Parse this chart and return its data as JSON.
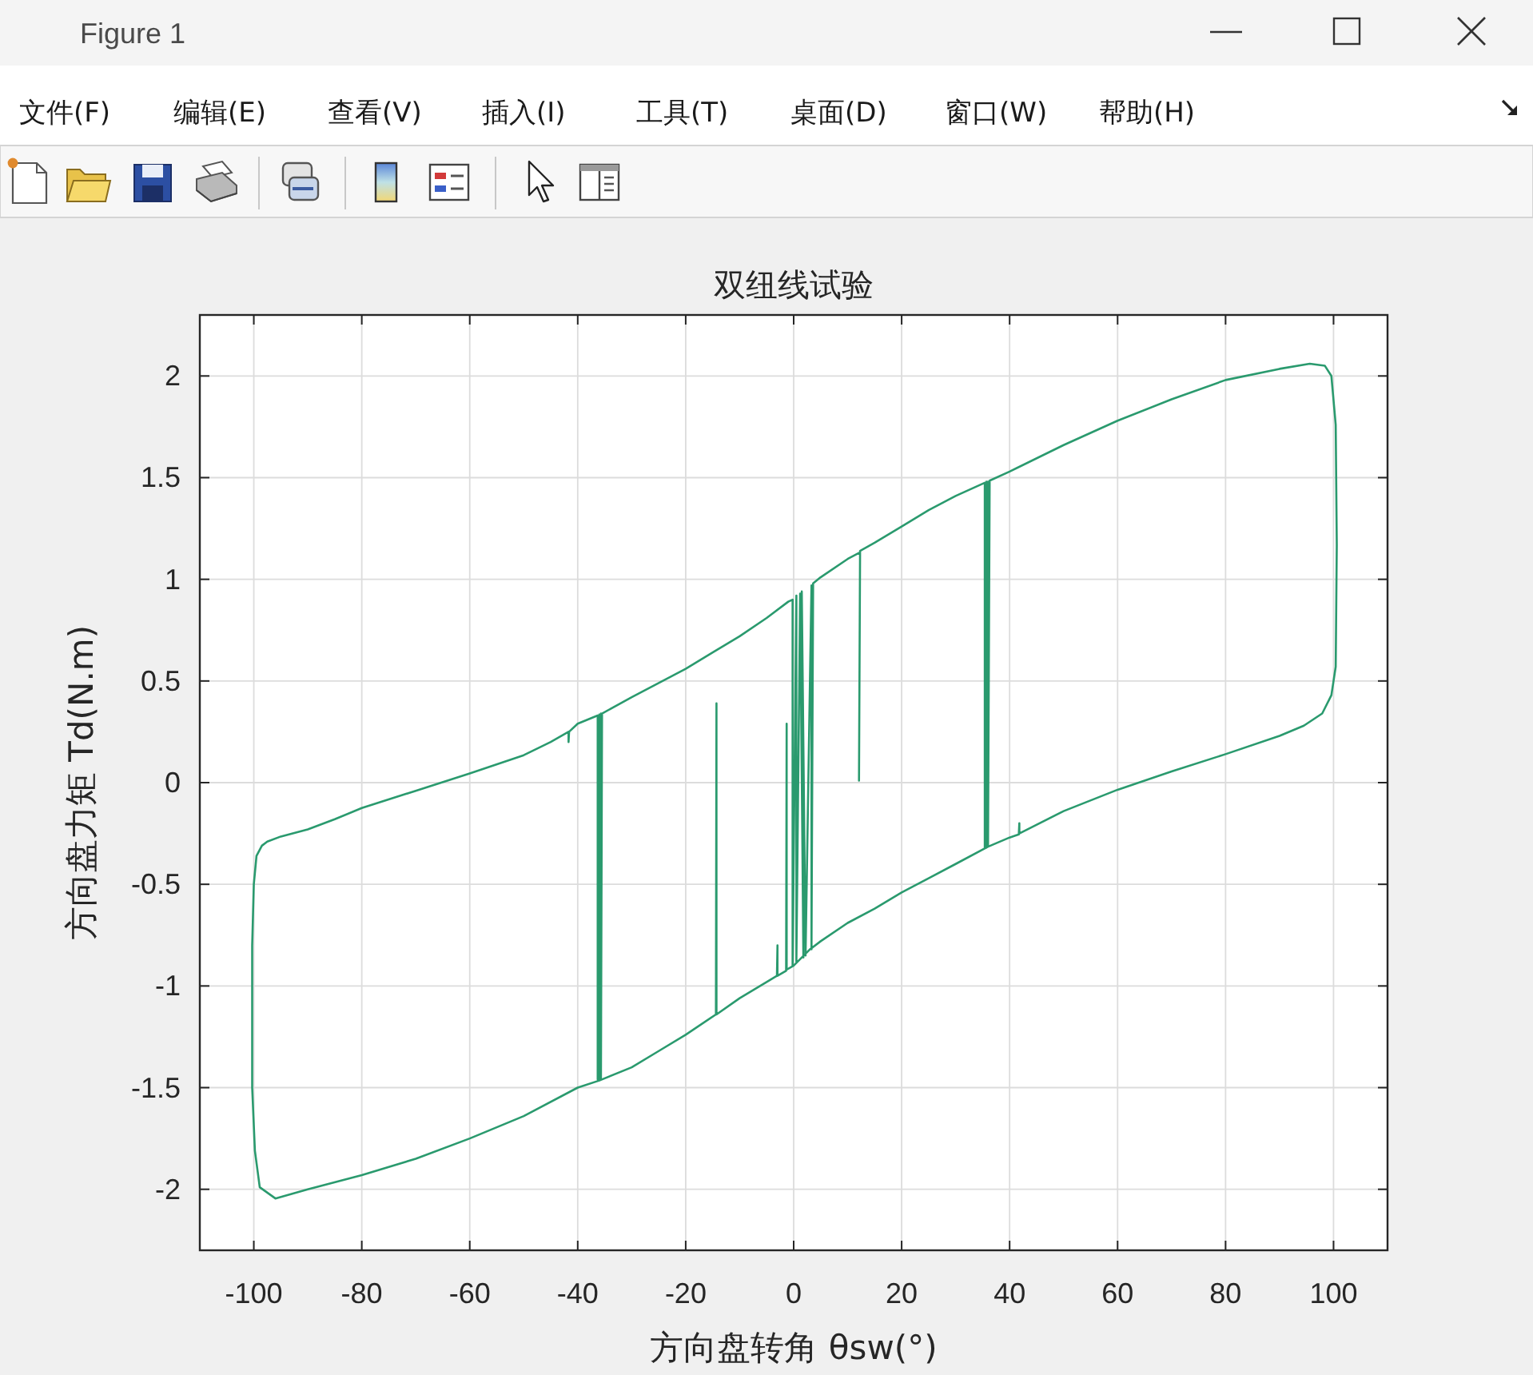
{
  "chart_data": {
    "type": "line",
    "title": "双纽线试验",
    "xlabel": "方向盘转角 θsw(°)",
    "ylabel": "方向盘力矩 Td(N.m)",
    "annotations": [
      "Figure 1",
      "文件(F)",
      "编辑(E)",
      "查看(V)",
      "插入(I)",
      "工具(T)",
      "桌面(D)",
      "窗口(W)",
      "帮助(H)"
    ],
    "series": [
      {
        "color": "#2a9a6e",
        "x": [
          12.1,
          12.3,
          15,
          20,
          25,
          30,
          35.4,
          35.4,
          35.7,
          35.7,
          36,
          36,
          36.3,
          40,
          50,
          60,
          70,
          80,
          90,
          95.6,
          98.4,
          99.6,
          100.4,
          100.6,
          100.4,
          99.6,
          97.9,
          94.5,
          90,
          80,
          70,
          60,
          50,
          41.8,
          41.8,
          41.7,
          40,
          36,
          30,
          25,
          20,
          15,
          10,
          5,
          3,
          0,
          -1.3,
          -1.3,
          -1.4,
          -3,
          -3,
          -3.1,
          -5,
          -10,
          -14.3,
          -14.3,
          -14.4,
          -20,
          -25,
          -30,
          -36,
          -40,
          -50,
          -60,
          -70,
          -80,
          -90,
          -96,
          -98.9,
          -99.8,
          -100.3,
          -100.3,
          -100,
          -99.5,
          -98.5,
          -97.5,
          -95,
          -90,
          -85,
          -80,
          -70,
          -60,
          -50,
          -45,
          -41.7,
          -41.7,
          -41.6,
          -40,
          -36.3,
          -36.3,
          -36,
          -36,
          -35.7,
          -35.7,
          -35.5,
          -30,
          -25,
          -20,
          -15,
          -10,
          -5,
          -1,
          -0.2,
          -0.2,
          0.5,
          0.5,
          1.2,
          1.8,
          1.5,
          2.2,
          3.3,
          3.3,
          3.6,
          5,
          10,
          12.1
        ],
        "values": [
          0.01,
          1.14,
          1.18,
          1.26,
          1.34,
          1.41,
          1.475,
          -0.32,
          1.48,
          -0.32,
          1.48,
          -0.31,
          1.485,
          1.53,
          1.66,
          1.78,
          1.885,
          1.98,
          2.035,
          2.06,
          2.05,
          2.0,
          1.76,
          1.17,
          0.57,
          0.43,
          0.34,
          0.28,
          0.23,
          0.14,
          0.055,
          -0.035,
          -0.14,
          -0.25,
          -0.2,
          -0.255,
          -0.27,
          -0.315,
          -0.4,
          -0.47,
          -0.54,
          -0.62,
          -0.69,
          -0.78,
          -0.82,
          -0.9,
          -0.92,
          0.29,
          -0.925,
          -0.95,
          -0.8,
          -0.95,
          -0.98,
          -1.06,
          -1.14,
          0.39,
          -1.14,
          -1.24,
          -1.32,
          -1.4,
          -1.465,
          -1.5,
          -1.64,
          -1.75,
          -1.85,
          -1.93,
          -2.0,
          -2.045,
          -1.99,
          -1.81,
          -1.5,
          -0.8,
          -0.5,
          -0.36,
          -0.31,
          -0.29,
          -0.265,
          -0.23,
          -0.18,
          -0.125,
          -0.04,
          0.045,
          0.135,
          0.2,
          0.25,
          0.2,
          0.25,
          0.29,
          0.33,
          -1.46,
          0.335,
          -1.465,
          0.34,
          -1.455,
          0.34,
          0.42,
          0.49,
          0.56,
          0.64,
          0.72,
          0.81,
          0.89,
          0.9,
          -0.9,
          0.92,
          -0.88,
          0.93,
          -0.86,
          0.94,
          -0.85,
          0.97,
          -0.82,
          0.98,
          1.01,
          1.1,
          1.13
        ]
      }
    ],
    "xlim": [
      -110,
      110
    ],
    "ylim": [
      -2.3,
      2.3
    ],
    "xticks": [
      -100,
      -80,
      -60,
      -40,
      -20,
      0,
      20,
      40,
      60,
      80,
      100
    ],
    "yticks": [
      -2,
      -1.5,
      -1,
      -0.5,
      0,
      0.5,
      1,
      1.5,
      2
    ],
    "grid": true,
    "line_style": "solid"
  }
}
